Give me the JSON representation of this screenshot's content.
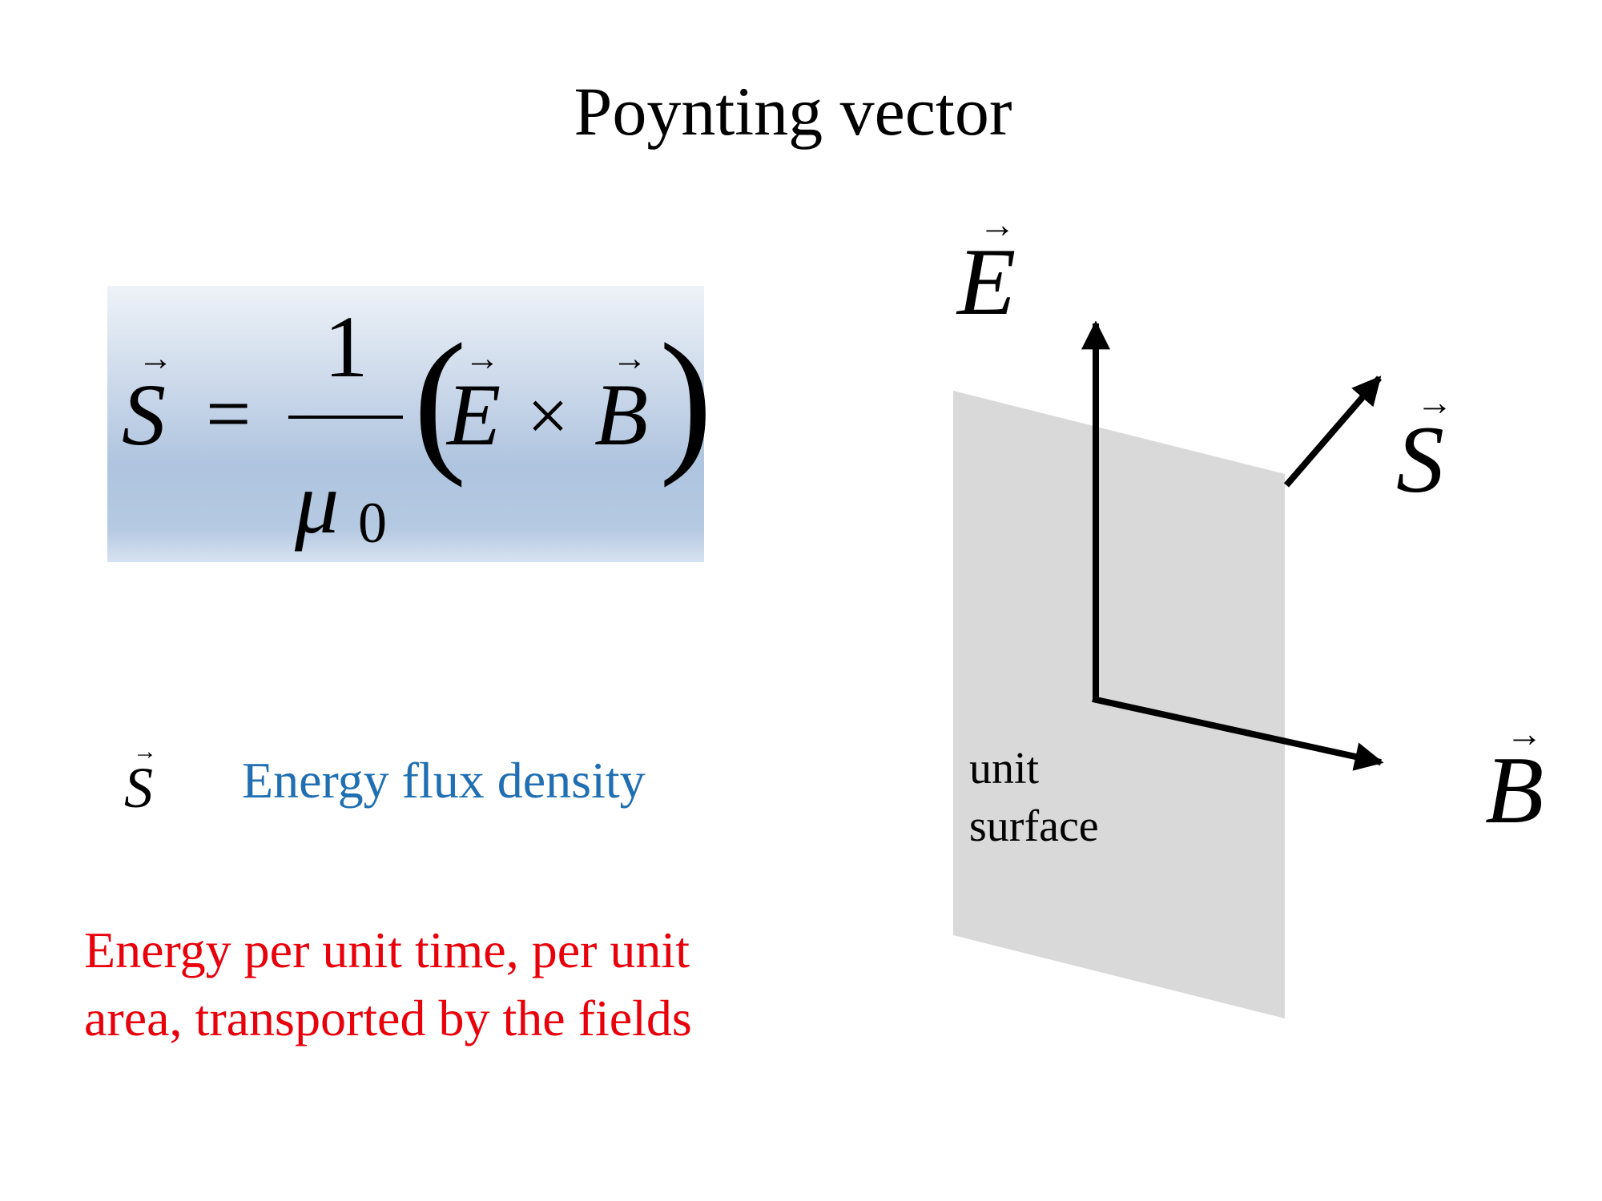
{
  "title": "Poynting vector",
  "formula": {
    "lhs": "S",
    "equals": "=",
    "numerator": "1",
    "denominator_symbol": "μ",
    "denominator_subscript": "0",
    "left_paren": "(",
    "right_paren": ")",
    "E": "E",
    "times": "×",
    "B": "B",
    "vector_arrow": "→"
  },
  "definition": {
    "symbol": "S",
    "text": "Energy flux density",
    "color": "#1f6fb2"
  },
  "description": {
    "line1": "Energy per unit time, per unit",
    "line2": "area, transported by the fields",
    "color": "#e8000b"
  },
  "diagram": {
    "e_label": "E",
    "b_label": "B",
    "s_label": "S",
    "surface_label_line1": "unit",
    "surface_label_line2": "surface",
    "surface_color": "#d9d9d9"
  },
  "colors": {
    "formula_box_top": "#eef2f8",
    "formula_box_bottom": "#afc4df"
  }
}
